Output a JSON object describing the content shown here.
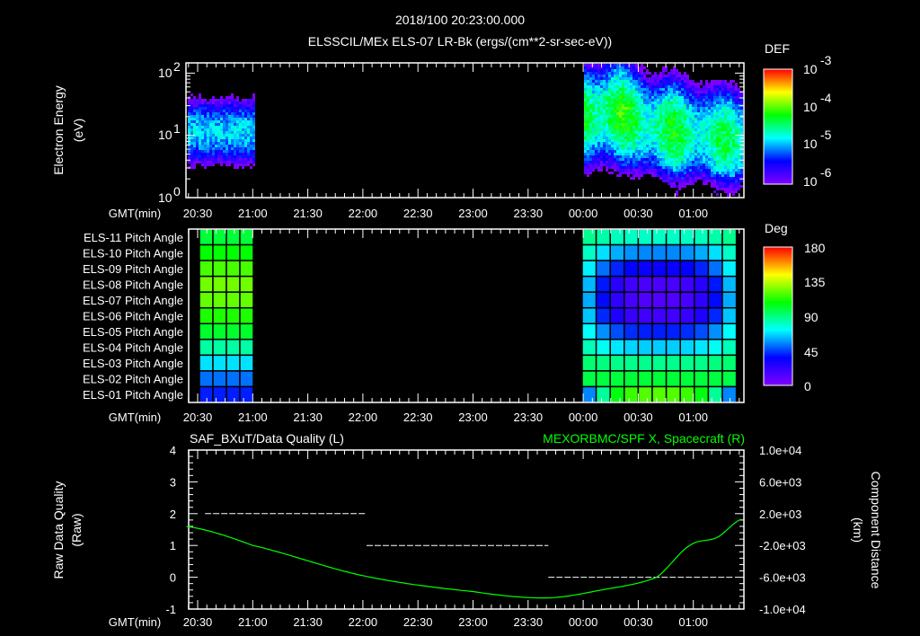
{
  "title": "2018/100 20:23:00.000",
  "subtitle": "ELSSCIL/MEx ELS-07 LR-Bk  (ergs/(cm**2-sr-sec-eV))",
  "time_axis_label": "GMT(min)",
  "time_ticks": [
    "20:30",
    "21:00",
    "21:30",
    "22:00",
    "22:30",
    "23:00",
    "23:30",
    "00:00",
    "00:30",
    "01:00"
  ],
  "colors": {
    "background": "#000000",
    "axis": "#ffffff",
    "right_series": "#00ff00"
  },
  "chart_data": [
    {
      "type": "heatmap",
      "name": "electron-energy-spectrogram",
      "ylabel_line1": "Electron Energy",
      "ylabel_line2": "(eV)",
      "yscale": "log",
      "ylim": [
        1,
        145
      ],
      "y_ticks": [
        {
          "base": "10",
          "exp": "0",
          "value": 1
        },
        {
          "base": "10",
          "exp": "1",
          "value": 10
        },
        {
          "base": "10",
          "exp": "2",
          "value": 100
        }
      ],
      "colorbar": {
        "label": "DEF",
        "scale": "log",
        "range": [
          1e-06,
          0.001
        ],
        "ticks": [
          {
            "base": "10",
            "exp": "-3"
          },
          {
            "base": "10",
            "exp": "-4"
          },
          {
            "base": "10",
            "exp": "-5"
          },
          {
            "base": "10",
            "exp": "-6"
          }
        ]
      },
      "data_intervals_min_after_2030": [
        [
          -10,
          30
        ],
        [
          210,
          296
        ]
      ],
      "peak_energy_eV_left": 12,
      "peak_energy_eV_right": [
        20,
        25,
        15,
        12,
        10,
        8
      ],
      "peak_log_def": [
        -4.9,
        -4.3
      ]
    },
    {
      "type": "heatmap",
      "name": "pitch-angle-grid",
      "rows": [
        "ELS-11 Pitch Angle",
        "ELS-10 Pitch Angle",
        "ELS-09 Pitch Angle",
        "ELS-08 Pitch Angle",
        "ELS-07 Pitch Angle",
        "ELS-06 Pitch Angle",
        "ELS-05 Pitch Angle",
        "ELS-04 Pitch Angle",
        "ELS-03 Pitch Angle",
        "ELS-02 Pitch Angle",
        "ELS-01 Pitch Angle"
      ],
      "colorbar": {
        "label": "Deg",
        "range": [
          0,
          180
        ],
        "ticks": [
          "180",
          "135",
          "90",
          "45",
          "0"
        ]
      },
      "left_block_deg": [
        100,
        108,
        118,
        124,
        122,
        112,
        102,
        85,
        68,
        52,
        40
      ],
      "right_block_center_deg": [
        80,
        55,
        33,
        15,
        13,
        18,
        40,
        65,
        88,
        100,
        120
      ],
      "right_block_edge_deg": [
        88,
        80,
        70,
        62,
        60,
        64,
        72,
        82,
        92,
        98,
        55
      ]
    },
    {
      "type": "line",
      "name": "data-quality-and-position",
      "left_title": "SAF_BXuT/Data Quality (L)",
      "right_title": "MEXORBMC/SPF X, Spacecraft (R)",
      "ylabel_left_line1": "Raw Data Quality",
      "ylabel_left_line2": "(Raw)",
      "ylabel_right_line1": "Component Distance",
      "ylabel_right_line2": "(km)",
      "ylim_left": [
        -1,
        4
      ],
      "ylim_right": [
        -10000,
        10000
      ],
      "left_ticks": [
        "4",
        "3",
        "2",
        "1",
        "0",
        "-1"
      ],
      "right_ticks": [
        "1.0e+04",
        "6.0e+03",
        "2.0e+03",
        "-2.0e+03",
        "-6.0e+03",
        "-1.0e+04"
      ],
      "data_quality_segments": [
        {
          "start": "20:34",
          "end": "22:02",
          "value": 2
        },
        {
          "start": "22:02",
          "end": "23:41",
          "value": 1
        },
        {
          "start": "23:41",
          "end": "01:22",
          "value": 0
        }
      ],
      "position_x_km": {
        "t_min_after_2030": [
          -6,
          30,
          90,
          150,
          190,
          220,
          250,
          268,
          283,
          296
        ],
        "values": [
          400,
          -2000,
          -5800,
          -7800,
          -8600,
          -7600,
          -6000,
          -2000,
          -1000,
          1300
        ]
      }
    }
  ]
}
